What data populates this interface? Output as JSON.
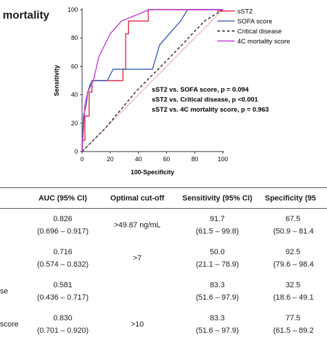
{
  "figure_title": "mortality",
  "chart_data": {
    "type": "line",
    "xlabel": "100-Specificity",
    "ylabel": "Sensitivity",
    "xlim": [
      0,
      100
    ],
    "ylim": [
      0,
      100
    ],
    "xticks": [
      "0",
      "20",
      "40",
      "60",
      "80",
      "100"
    ],
    "yticks": [
      "0",
      "20",
      "40",
      "60",
      "80",
      "100"
    ],
    "grid": false,
    "legend_position": "top-right",
    "series": [
      {
        "name": "sST2",
        "color": "#e02a3c",
        "points": [
          [
            0,
            0
          ],
          [
            0,
            8
          ],
          [
            2,
            8
          ],
          [
            2,
            25
          ],
          [
            5,
            25
          ],
          [
            5,
            42
          ],
          [
            7,
            42
          ],
          [
            7,
            50
          ],
          [
            29,
            50
          ],
          [
            29,
            58
          ],
          [
            31,
            58
          ],
          [
            31,
            67
          ],
          [
            31,
            75
          ],
          [
            31,
            83
          ],
          [
            33,
            83
          ],
          [
            33,
            92
          ],
          [
            47,
            92
          ],
          [
            47,
            100
          ],
          [
            100,
            100
          ]
        ]
      },
      {
        "name": "SOFA score",
        "color": "#3a62b5",
        "points": [
          [
            0,
            0
          ],
          [
            1,
            25
          ],
          [
            3,
            33
          ],
          [
            4,
            42
          ],
          [
            6,
            48
          ],
          [
            8,
            50
          ],
          [
            18,
            50
          ],
          [
            22,
            58
          ],
          [
            45,
            58
          ],
          [
            50,
            58
          ],
          [
            55,
            75
          ],
          [
            62,
            83
          ],
          [
            70,
            92
          ],
          [
            75,
            100
          ],
          [
            100,
            100
          ]
        ]
      },
      {
        "name": "Critical disease",
        "color": "#222222",
        "dash": true,
        "points": [
          [
            0,
            0
          ],
          [
            17,
            17
          ],
          [
            38,
            42
          ],
          [
            63,
            67
          ],
          [
            87,
            92
          ],
          [
            100,
            100
          ]
        ]
      },
      {
        "name": "4C mortality score",
        "color": "#c13ad6",
        "points": [
          [
            0,
            0
          ],
          [
            2,
            33
          ],
          [
            4,
            42
          ],
          [
            8,
            50
          ],
          [
            12,
            67
          ],
          [
            16,
            75
          ],
          [
            20,
            83
          ],
          [
            28,
            92
          ],
          [
            48,
            100
          ],
          [
            100,
            100
          ]
        ]
      }
    ],
    "reference_line": {
      "color": "#f0a0a8",
      "points": [
        [
          0,
          0
        ],
        [
          100,
          100
        ]
      ]
    },
    "annotations": [
      "sST2 vs. SOFA score, p = 0.094",
      "sST2 vs. Critical disease, p <0.001",
      "sST2 vs. 4C mortality score, p = 0.963"
    ]
  },
  "table": {
    "headers": [
      "",
      "AUC (95% CI)",
      "Optimal cut-off",
      "Sensitivity (95% CI)",
      "Specificity (95"
    ],
    "rows": [
      {
        "label": "",
        "auc": "0.826",
        "auc_ci": "(0.696 – 0.917)",
        "cutoff": ">49.87 ng/mL",
        "sens": "91.7",
        "sens_ci": "(61.5 – 99.8)",
        "spec": "67.5",
        "spec_ci": "(50.9 – 81.4"
      },
      {
        "label": "",
        "auc": "0.716",
        "auc_ci": "(0.574 – 0.832)",
        "cutoff": ">7",
        "sens": "50.0",
        "sens_ci": "(21.1 – 78.9)",
        "spec": "92.5",
        "spec_ci": "(79.6 – 98.4"
      },
      {
        "label": "se",
        "auc": "0.581",
        "auc_ci": "(0.436 – 0.717)",
        "cutoff": "",
        "sens": "83.3",
        "sens_ci": "(51.6 – 97.9)",
        "spec": "32.5",
        "spec_ci": "(18.6 – 49.1"
      },
      {
        "label": "score",
        "auc": "0.830",
        "auc_ci": "(0.701 – 0.920)",
        "cutoff": ">10",
        "sens": "83.3",
        "sens_ci": "(51.6 – 97.9)",
        "spec": "77.5",
        "spec_ci": "(61.5 – 89.2"
      }
    ]
  }
}
